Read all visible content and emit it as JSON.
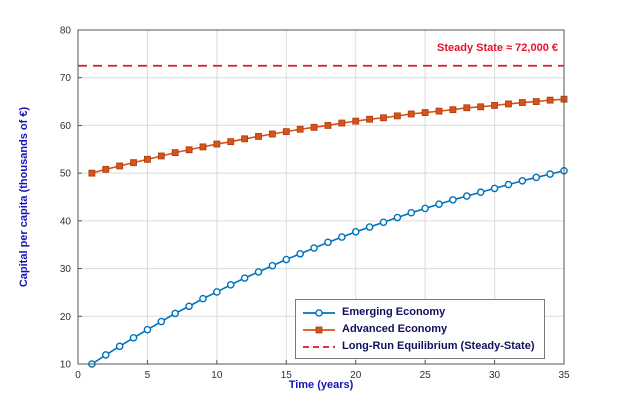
{
  "styles": {
    "background": "#ffffff",
    "axis_label_color": "#1414b8",
    "tick_color": "#303030",
    "grid_color": "#dcdcdc",
    "box_color": "#555555",
    "legend_text_color": "#10105e"
  },
  "chart_data": {
    "type": "line",
    "title": "",
    "xlabel": "Time (years)",
    "ylabel": "Capital per capita (thousands of €)",
    "xlim": [
      0,
      35
    ],
    "ylim": [
      10,
      80
    ],
    "xticks": [
      0,
      5,
      10,
      15,
      20,
      25,
      30,
      35
    ],
    "yticks": [
      10,
      20,
      30,
      40,
      50,
      60,
      70,
      80
    ],
    "grid": true,
    "legend_position": "lower-right",
    "annotation": {
      "text": "Steady State ≈ 72,000 €",
      "color": "#e8112d",
      "y": 72.5
    },
    "x": [
      1,
      2,
      3,
      4,
      5,
      6,
      7,
      8,
      9,
      10,
      11,
      12,
      13,
      14,
      15,
      16,
      17,
      18,
      19,
      20,
      21,
      22,
      23,
      24,
      25,
      26,
      27,
      28,
      29,
      30,
      31,
      32,
      33,
      34,
      35
    ],
    "series": [
      {
        "name": "Emerging Economy",
        "color": "#0072BD",
        "marker": "circle",
        "line": "solid",
        "values": [
          10.0,
          11.9,
          13.7,
          15.5,
          17.2,
          18.9,
          20.6,
          22.1,
          23.7,
          25.1,
          26.6,
          28.0,
          29.3,
          30.6,
          31.9,
          33.1,
          34.3,
          35.5,
          36.6,
          37.7,
          38.7,
          39.7,
          40.7,
          41.7,
          42.6,
          43.5,
          44.4,
          45.2,
          46.0,
          46.8,
          47.6,
          48.4,
          49.1,
          49.8,
          50.5
        ]
      },
      {
        "name": "Advanced Economy",
        "color": "#D95319",
        "marker": "square",
        "line": "solid",
        "values": [
          50.0,
          50.8,
          51.5,
          52.2,
          52.9,
          53.6,
          54.3,
          54.9,
          55.5,
          56.1,
          56.6,
          57.2,
          57.7,
          58.2,
          58.7,
          59.2,
          59.6,
          60.0,
          60.5,
          60.9,
          61.3,
          61.6,
          62.0,
          62.4,
          62.7,
          63.0,
          63.3,
          63.7,
          63.9,
          64.2,
          64.5,
          64.8,
          65.0,
          65.3,
          65.5
        ]
      },
      {
        "name": "Long-Run Equilibrium (Steady-State)",
        "color": "#e8112d",
        "marker": "none",
        "line": "dashed",
        "constant": 72.5
      }
    ]
  }
}
